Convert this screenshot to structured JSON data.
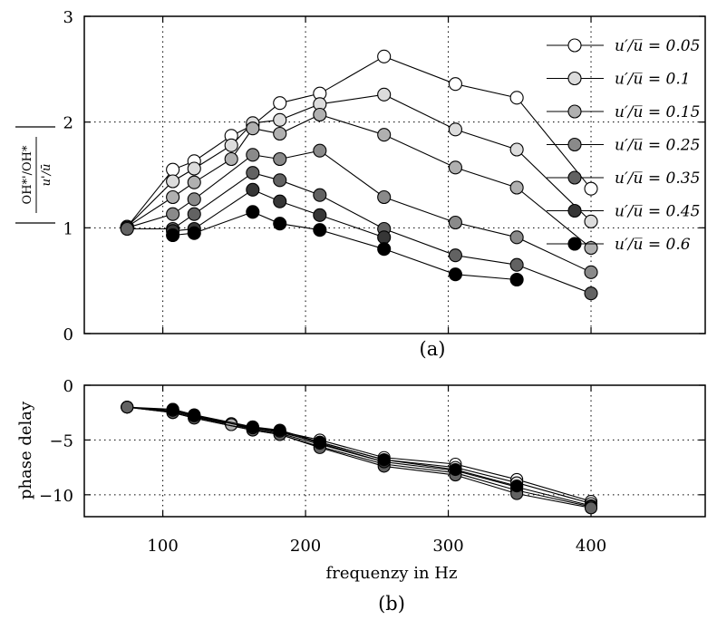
{
  "chart_data": [
    {
      "type": "line",
      "panel_label": "(a)",
      "xlabel": "",
      "ylabel": "|(OH*'/OH*) / (u'/ū)|",
      "ylabel_parts": {
        "num": "OH*'/OH*",
        "den": "u'/ū"
      },
      "xlim": [
        45,
        480
      ],
      "ylim": [
        0,
        3
      ],
      "yticks": [
        0,
        1,
        2,
        3
      ],
      "yticklabels": [
        "0",
        "1",
        "2",
        "3"
      ],
      "xticks": [
        100,
        200,
        300,
        400
      ],
      "grid": true,
      "legend_position": "top-right",
      "series": [
        {
          "name": "u′/u̅ = 0.05",
          "color": "#ffffff",
          "x": [
            75,
            107,
            122,
            148,
            163,
            182,
            210,
            255,
            305,
            348,
            400
          ],
          "y": [
            1.01,
            1.55,
            1.63,
            1.87,
            1.97,
            2.18,
            2.27,
            2.62,
            2.36,
            2.23,
            1.37
          ]
        },
        {
          "name": "u′/u̅ = 0.1",
          "color": "#dcdcdc",
          "x": [
            75,
            107,
            122,
            148,
            163,
            182,
            210,
            255,
            305,
            348,
            400
          ],
          "y": [
            1.01,
            1.44,
            1.56,
            1.78,
            1.99,
            2.02,
            2.17,
            2.26,
            1.93,
            1.74,
            1.06
          ]
        },
        {
          "name": "u′/u̅ = 0.15",
          "color": "#b0b0b0",
          "x": [
            75,
            107,
            122,
            148,
            163,
            182,
            210,
            255,
            305,
            348,
            400
          ],
          "y": [
            1.01,
            1.29,
            1.43,
            1.65,
            1.94,
            1.89,
            2.07,
            1.88,
            1.57,
            1.38,
            0.81
          ]
        },
        {
          "name": "u′/u̅ = 0.25",
          "color": "#8a8a8a",
          "x": [
            75,
            107,
            122,
            163,
            182,
            210,
            255,
            305,
            348,
            400
          ],
          "y": [
            1.0,
            1.13,
            1.27,
            1.69,
            1.65,
            1.73,
            1.29,
            1.05,
            0.91,
            0.58
          ]
        },
        {
          "name": "u′/u̅ = 0.35",
          "color": "#626262",
          "x": [
            75,
            107,
            122,
            163,
            182,
            210,
            255,
            305,
            348,
            400
          ],
          "y": [
            0.99,
            0.99,
            1.13,
            1.52,
            1.45,
            1.31,
            0.99,
            0.74,
            0.65,
            0.38
          ]
        },
        {
          "name": "u′/u̅ = 0.45",
          "color": "#363636",
          "x": [
            107,
            122,
            163,
            182,
            210,
            255
          ],
          "y": [
            0.97,
            0.99,
            1.36,
            1.25,
            1.12,
            0.91
          ]
        },
        {
          "name": "u′/u̅ = 0.6",
          "color": "#000000",
          "x": [
            107,
            122,
            163,
            182,
            210,
            255,
            305,
            348
          ],
          "y": [
            0.93,
            0.95,
            1.15,
            1.04,
            0.98,
            0.8,
            0.56,
            0.51
          ]
        }
      ]
    },
    {
      "type": "line",
      "panel_label": "(b)",
      "xlabel": "frequenzy in Hz",
      "ylabel": "phase delay",
      "xlim": [
        45,
        480
      ],
      "ylim": [
        -12,
        0
      ],
      "yticks": [
        0,
        -5,
        -10
      ],
      "yticklabels": [
        "0",
        "−5",
        "−10"
      ],
      "xticks": [
        100,
        200,
        300,
        400
      ],
      "xticklabels": [
        "100",
        "200",
        "300",
        "400"
      ],
      "grid": true,
      "series": [
        {
          "name": "u′/u̅ = 0.05",
          "color": "#ffffff",
          "x": [
            75,
            107,
            122,
            148,
            163,
            182,
            210,
            255,
            305,
            348,
            400
          ],
          "y": [
            -2.0,
            -2.2,
            -2.7,
            -3.5,
            -3.8,
            -4.2,
            -5.0,
            -6.6,
            -7.2,
            -8.6,
            -10.6
          ]
        },
        {
          "name": "u′/u̅ = 0.1",
          "color": "#dcdcdc",
          "x": [
            75,
            107,
            122,
            148,
            163,
            182,
            210,
            255,
            305,
            348,
            400
          ],
          "y": [
            -2.0,
            -2.3,
            -2.8,
            -3.6,
            -3.9,
            -4.3,
            -5.2,
            -6.8,
            -7.5,
            -8.9,
            -10.8
          ]
        },
        {
          "name": "u′/u̅ = 0.15",
          "color": "#b0b0b0",
          "x": [
            75,
            107,
            122,
            148,
            163,
            182,
            210,
            255,
            305,
            348,
            400
          ],
          "y": [
            -2.0,
            -2.4,
            -2.9,
            -3.6,
            -4.0,
            -4.4,
            -5.4,
            -7.0,
            -7.8,
            -9.3,
            -11.0
          ]
        },
        {
          "name": "u′/u̅ = 0.25",
          "color": "#8a8a8a",
          "x": [
            75,
            107,
            122,
            163,
            182,
            210,
            255,
            305,
            348,
            400
          ],
          "y": [
            -2.0,
            -2.5,
            -3.0,
            -4.1,
            -4.5,
            -5.6,
            -7.2,
            -8.0,
            -9.6,
            -11.1
          ]
        },
        {
          "name": "u′/u̅ = 0.35",
          "color": "#626262",
          "x": [
            75,
            107,
            122,
            163,
            182,
            210,
            255,
            305,
            348,
            400
          ],
          "y": [
            -2.0,
            -2.5,
            -3.0,
            -4.1,
            -4.5,
            -5.7,
            -7.4,
            -8.2,
            -9.9,
            -11.2
          ]
        },
        {
          "name": "u′/u̅ = 0.45",
          "color": "#363636",
          "x": [
            107,
            122,
            163,
            182,
            210,
            255
          ],
          "y": [
            -2.3,
            -2.8,
            -3.9,
            -4.2,
            -5.3,
            -7.0
          ]
        },
        {
          "name": "u′/u̅ = 0.6",
          "color": "#000000",
          "x": [
            107,
            122,
            163,
            182,
            210,
            255,
            305,
            348
          ],
          "y": [
            -2.2,
            -2.7,
            -3.8,
            -4.1,
            -5.2,
            -6.8,
            -7.7,
            -9.2
          ]
        }
      ]
    }
  ],
  "legend": {
    "lhs": "u′/u̅",
    "entries": [
      "u′/u̅ = 0.05",
      "u′/u̅ = 0.1",
      "u′/u̅ = 0.15",
      "u′/u̅ = 0.25",
      "u′/u̅ = 0.35",
      "u′/u̅ = 0.45",
      "u′/u̅ = 0.6"
    ],
    "values": [
      "0.05",
      "0.1",
      "0.15",
      "0.25",
      "0.35",
      "0.45",
      "0.6"
    ]
  }
}
